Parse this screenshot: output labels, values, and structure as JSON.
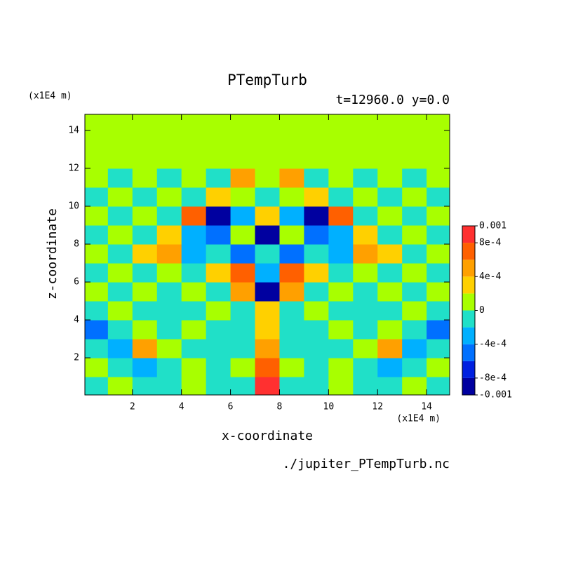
{
  "chart_data": {
    "type": "contour",
    "title": "PTempTurb",
    "subtitle": "t=12960.0 y=0.0",
    "x_label": "x-coordinate",
    "y_label": "z-coordinate",
    "x_unit": "(x1E4 m)",
    "y_unit": "(x1E4 m)",
    "source": "./jupiter_PTempTurb.nc",
    "xlim": [
      0.06,
      14.94
    ],
    "ylim": [
      0.04,
      14.85
    ],
    "xticks": [
      2,
      4,
      6,
      8,
      10,
      12,
      14
    ],
    "yticks": [
      2,
      4,
      6,
      8,
      10,
      12,
      14
    ],
    "x": [
      0.5,
      1.5,
      2.5,
      3.5,
      4.5,
      5.5,
      6.5,
      7.5,
      8.5,
      9.5,
      10.5,
      11.5,
      12.5,
      13.5,
      14.5
    ],
    "z": [
      0.5,
      1.5,
      2.5,
      3.5,
      4.5,
      5.5,
      6.5,
      7.5,
      8.5,
      9.5,
      10.5,
      11.5,
      12.5,
      13.5,
      14.5
    ],
    "levels": [
      -0.001,
      -0.0008,
      -0.0006,
      -0.0004,
      -0.0002,
      0,
      0.0002,
      0.0004,
      0.0006,
      0.0008,
      0.001
    ],
    "colors": [
      "#0000a0",
      "#0020e0",
      "#0070ff",
      "#00b0ff",
      "#20e0c8",
      "#a8ff00",
      "#ffd000",
      "#ffa000",
      "#ff6000",
      "#ff3030"
    ],
    "cbar_ticks": [
      0.001,
      {
        "value": 0.0008,
        "label": "8e-4"
      },
      {
        "value": 0.0004,
        "label": "4e-4"
      },
      0,
      {
        "value": -0.0004,
        "label": "-4e-4"
      },
      {
        "value": -0.0008,
        "label": "-8e-4"
      },
      -0.001
    ],
    "values": [
      [
        -0.0001,
        0.0001,
        -0.0001,
        -0.0001,
        0.0001,
        -0.0001,
        -0.0001,
        0.0009,
        -0.0001,
        -0.0001,
        0.0001,
        -0.0001,
        -0.0001,
        0.0001,
        -0.0001
      ],
      [
        0.0001,
        -0.0001,
        -0.0003,
        -0.0001,
        0.0001,
        -0.0001,
        0.0001,
        0.0007,
        0.0001,
        -0.0001,
        0.0001,
        -0.0001,
        -0.0003,
        -0.0001,
        0.0001
      ],
      [
        -0.0001,
        -0.0003,
        0.0005,
        0.0001,
        -0.0001,
        -0.0001,
        -0.0001,
        0.0005,
        -0.0001,
        -0.0001,
        -0.0001,
        0.0001,
        0.0005,
        -0.0003,
        -0.0001
      ],
      [
        -0.0005,
        -0.0001,
        0.0001,
        -0.0001,
        0.0001,
        -0.0001,
        -0.0001,
        0.0003,
        -0.0001,
        -0.0001,
        0.0001,
        -0.0001,
        0.0001,
        -0.0001,
        -0.0005
      ],
      [
        -0.0001,
        0.0001,
        -0.0001,
        -0.0001,
        -0.0001,
        0.0001,
        -0.0001,
        0.0003,
        -0.0001,
        0.0001,
        -0.0001,
        -0.0001,
        -0.0001,
        0.0001,
        -0.0001
      ],
      [
        0.0001,
        -0.0001,
        0.0001,
        -0.0001,
        0.0001,
        -0.0001,
        0.0005,
        -0.0009,
        0.0005,
        -0.0001,
        0.0001,
        -0.0001,
        0.0001,
        -0.0001,
        0.0001
      ],
      [
        -0.0001,
        0.0001,
        -0.0001,
        0.0001,
        -0.0001,
        0.0003,
        0.0007,
        -0.0003,
        0.0007,
        0.0003,
        -0.0001,
        0.0001,
        -0.0001,
        0.0001,
        -0.0001
      ],
      [
        0.0001,
        -0.0001,
        0.0003,
        0.0005,
        -0.0003,
        -0.0001,
        -0.0005,
        -0.0001,
        -0.0005,
        -0.0001,
        -0.0003,
        0.0005,
        0.0003,
        -0.0001,
        0.0001
      ],
      [
        -0.0001,
        0.0001,
        -0.0001,
        0.0003,
        -0.0003,
        -0.0005,
        0.0001,
        -0.0009,
        0.0001,
        -0.0005,
        -0.0003,
        0.0003,
        -0.0001,
        0.0001,
        -0.0001
      ],
      [
        0.0001,
        -0.0001,
        0.0001,
        -0.0001,
        0.0007,
        -0.0009,
        -0.0003,
        0.0003,
        -0.0003,
        -0.0009,
        0.0007,
        -0.0001,
        0.0001,
        -0.0001,
        0.0001
      ],
      [
        -0.0001,
        0.0001,
        -0.0001,
        0.0001,
        -0.0001,
        0.0003,
        0.0001,
        -0.0001,
        0.0001,
        0.0003,
        -0.0001,
        0.0001,
        -0.0001,
        0.0001,
        -0.0001
      ],
      [
        0.0001,
        -0.0001,
        0.0001,
        -0.0001,
        0.0001,
        -0.0001,
        0.0005,
        0.0001,
        0.0005,
        -0.0001,
        0.0001,
        -0.0001,
        0.0001,
        -0.0001,
        0.0001
      ],
      [
        0.0001,
        0.0001,
        0.0001,
        0.0001,
        0.0001,
        0.0001,
        0.0001,
        0.0001,
        0.0001,
        0.0001,
        0.0001,
        0.0001,
        0.0001,
        0.0001,
        0.0001
      ],
      [
        0.0001,
        0.0001,
        0.0001,
        0.0001,
        0.0001,
        0.0001,
        0.0001,
        0.0001,
        0.0001,
        0.0001,
        0.0001,
        0.0001,
        0.0001,
        0.0001,
        0.0001
      ],
      [
        0.0001,
        0.0001,
        0.0001,
        0.0001,
        0.0001,
        0.0001,
        0.0001,
        0.0001,
        0.0001,
        0.0001,
        0.0001,
        0.0001,
        0.0001,
        0.0001,
        0.0001
      ]
    ]
  }
}
